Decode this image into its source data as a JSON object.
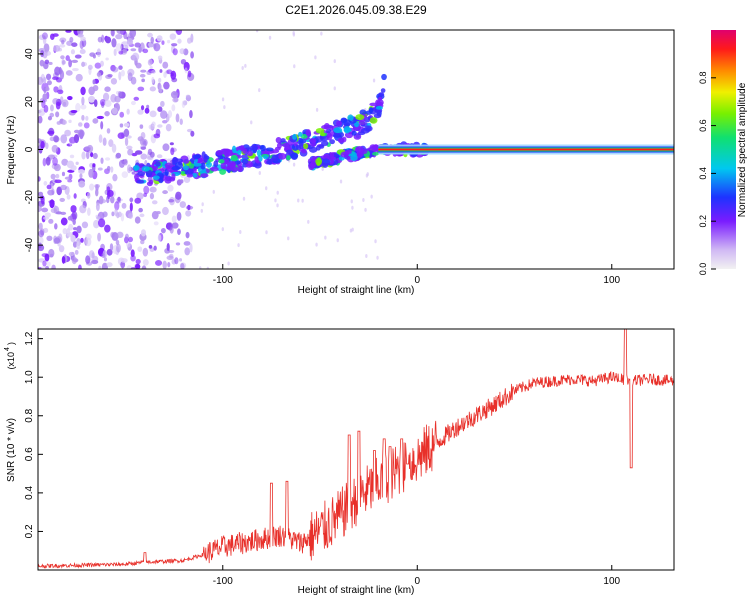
{
  "title": "C2E1.2026.045.09.38.E29",
  "colors": {
    "signal": "#e8302a",
    "band": "#7a1cff",
    "carrier": "#ff1a1a"
  },
  "chart_data": [
    {
      "type": "heatmap",
      "title": "C2E1.2026.045.09.38.E29",
      "xlabel": "Height of straight line (km)",
      "ylabel": "Frequency (Hz)",
      "xlim": [
        -195,
        132
      ],
      "ylim": [
        -50,
        50
      ],
      "x_ticks": [
        -100,
        0,
        100
      ],
      "y_ticks": [
        -40,
        -20,
        0,
        20,
        40
      ],
      "x_tick_labels": [
        "-100",
        "0",
        "100"
      ],
      "y_tick_labels": [
        "-40",
        "-20",
        "0",
        "20",
        "40"
      ],
      "colorbar": {
        "label": "Normalized spectral amplitude",
        "range": [
          0,
          1
        ],
        "ticks": [
          0,
          0.2,
          0.4,
          0.6,
          0.8
        ],
        "tick_labels": [
          "0.0",
          "0.2",
          "0.4",
          "0.6",
          "0.8"
        ]
      },
      "features": {
        "noise_region_x": [
          -195,
          -115
        ],
        "lower_track": [
          [
            -145,
            -11
          ],
          [
            -120,
            -8
          ],
          [
            -100,
            -5
          ],
          [
            -80,
            -2
          ],
          [
            -60,
            2
          ],
          [
            -45,
            6
          ],
          [
            -30,
            10
          ],
          [
            -22,
            15
          ],
          [
            -18,
            22
          ],
          [
            -17,
            28
          ]
        ],
        "upper_track": [
          [
            -55,
            -6
          ],
          [
            -40,
            -3
          ],
          [
            -25,
            -1
          ],
          [
            -15,
            0
          ],
          [
            -5,
            0
          ],
          [
            5,
            0
          ]
        ],
        "carrier_line": {
          "y": 0,
          "x_start": -20,
          "x_end": 132
        }
      }
    },
    {
      "type": "line",
      "xlabel": "Height of straight line (km)",
      "ylabel": "SNR (10 * v/v)",
      "y_scale_label": "(x10",
      "y_scale_exp": "4",
      "y_scale_close": ")",
      "xlim": [
        -195,
        132
      ],
      "ylim": [
        0,
        1.25
      ],
      "x_ticks": [
        -100,
        0,
        100
      ],
      "y_ticks": [
        0.2,
        0.4,
        0.6,
        0.8,
        1.0,
        1.2
      ],
      "x_tick_labels": [
        "-100",
        "0",
        "100"
      ],
      "y_tick_labels": [
        "0.2",
        "0.4",
        "0.6",
        "0.8",
        "1.0",
        "1.2"
      ],
      "series": [
        {
          "name": "SNR",
          "color": "#e8302a",
          "envelope": [
            [
              -195,
              0.02
            ],
            [
              -150,
              0.03
            ],
            [
              -140,
              0.04
            ],
            [
              -120,
              0.05
            ],
            [
              -110,
              0.08
            ],
            [
              -100,
              0.12
            ],
            [
              -90,
              0.14
            ],
            [
              -80,
              0.16
            ],
            [
              -70,
              0.18
            ],
            [
              -60,
              0.14
            ],
            [
              -50,
              0.2
            ],
            [
              -40,
              0.28
            ],
            [
              -30,
              0.38
            ],
            [
              -20,
              0.45
            ],
            [
              -10,
              0.52
            ],
            [
              0,
              0.58
            ],
            [
              10,
              0.66
            ],
            [
              20,
              0.74
            ],
            [
              30,
              0.8
            ],
            [
              40,
              0.86
            ],
            [
              50,
              0.93
            ],
            [
              60,
              0.97
            ],
            [
              70,
              0.98
            ],
            [
              80,
              0.99
            ],
            [
              90,
              0.98
            ],
            [
              100,
              1.0
            ],
            [
              110,
              0.98
            ],
            [
              120,
              0.99
            ],
            [
              132,
              0.98
            ]
          ],
          "spikes": [
            [
              -140,
              0.09
            ],
            [
              -75,
              0.45
            ],
            [
              -67,
              0.46
            ],
            [
              -35,
              0.7
            ],
            [
              -30,
              0.72
            ],
            [
              -22,
              0.62
            ],
            [
              -17,
              0.68
            ],
            [
              -14,
              0.64
            ],
            [
              -8,
              0.68
            ],
            [
              -5,
              0.55
            ],
            [
              107,
              1.25
            ],
            [
              104,
              0.98
            ],
            [
              110,
              0.53
            ]
          ]
        }
      ]
    }
  ]
}
